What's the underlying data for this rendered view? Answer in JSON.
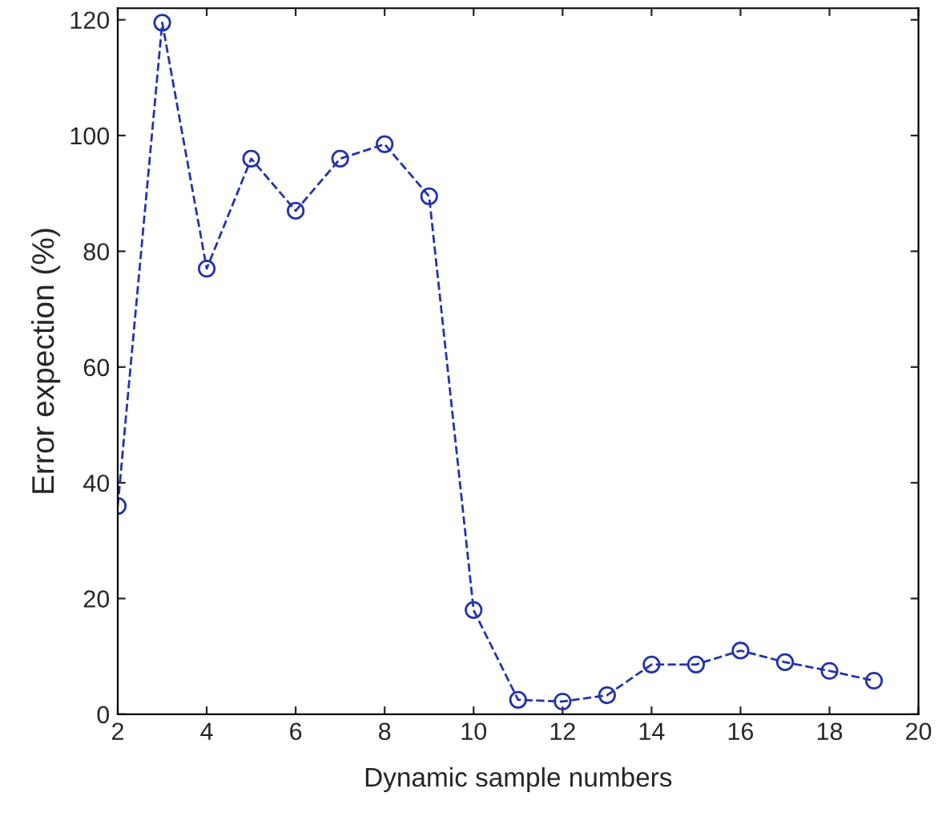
{
  "chart_data": {
    "type": "line",
    "xlabel": "Dynamic sample numbers",
    "ylabel": "Error expection (%)",
    "x": [
      2,
      3,
      4,
      5,
      6,
      7,
      8,
      9,
      10,
      11,
      12,
      13,
      14,
      15,
      16,
      17,
      18,
      19
    ],
    "series": [
      {
        "color": "#2233aa",
        "values": [
          36,
          119.5,
          77,
          96,
          87,
          96,
          98.5,
          89.5,
          18,
          2.5,
          2.2,
          3.3,
          8.6,
          8.6,
          11,
          9,
          7.5,
          5.8
        ]
      }
    ],
    "xlim": [
      2,
      20
    ],
    "xticks": [
      2,
      4,
      6,
      8,
      10,
      12,
      14,
      16,
      18,
      20
    ],
    "ylim": [
      0,
      122
    ],
    "yticks": [
      0,
      20,
      40,
      60,
      80,
      100,
      120
    ],
    "marker": "circle",
    "line_style": "dashed",
    "grid": false,
    "legend": false
  }
}
